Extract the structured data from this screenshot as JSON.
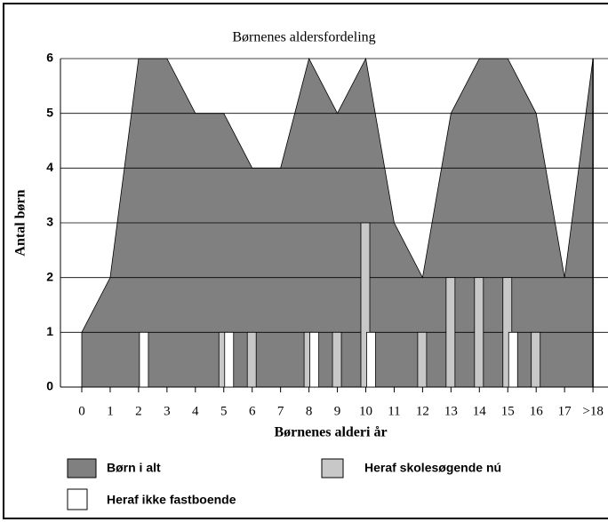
{
  "chart_data": {
    "type": "area",
    "title": "Børnenes aldersfordeling",
    "xlabel": "Børnenes alderi år",
    "ylabel": "Antal børn",
    "categories": [
      "0",
      "1",
      "2",
      "3",
      "4",
      "5",
      "6",
      "7",
      "8",
      "9",
      "10",
      "11",
      "12",
      "13",
      "14",
      "15",
      "16",
      "17",
      ">18"
    ],
    "series": [
      {
        "name": "Børn i alt",
        "type": "area",
        "color": "#808080",
        "values": [
          1,
          2,
          6,
          6,
          5,
          5,
          4,
          4,
          6,
          5,
          6,
          3,
          2,
          5,
          6,
          6,
          5,
          2,
          6
        ]
      },
      {
        "name": "Heraf skolesøgende nú",
        "type": "bar",
        "color": "#c8c8c8",
        "values": [
          0,
          0,
          0,
          0,
          0,
          1,
          1,
          0,
          1,
          1,
          3,
          0,
          1,
          2,
          2,
          2,
          1,
          0,
          0
        ]
      },
      {
        "name": "Heraf ikke fastboende",
        "type": "bar",
        "color": "#ffffff",
        "values": [
          0,
          0,
          1,
          0,
          0,
          1,
          0,
          0,
          1,
          0,
          1,
          0,
          0,
          0,
          0,
          1,
          0,
          0,
          0
        ]
      }
    ],
    "ylim": [
      0,
      6
    ],
    "yticks": [
      0,
      1,
      2,
      3,
      4,
      5,
      6
    ],
    "grid": true
  }
}
